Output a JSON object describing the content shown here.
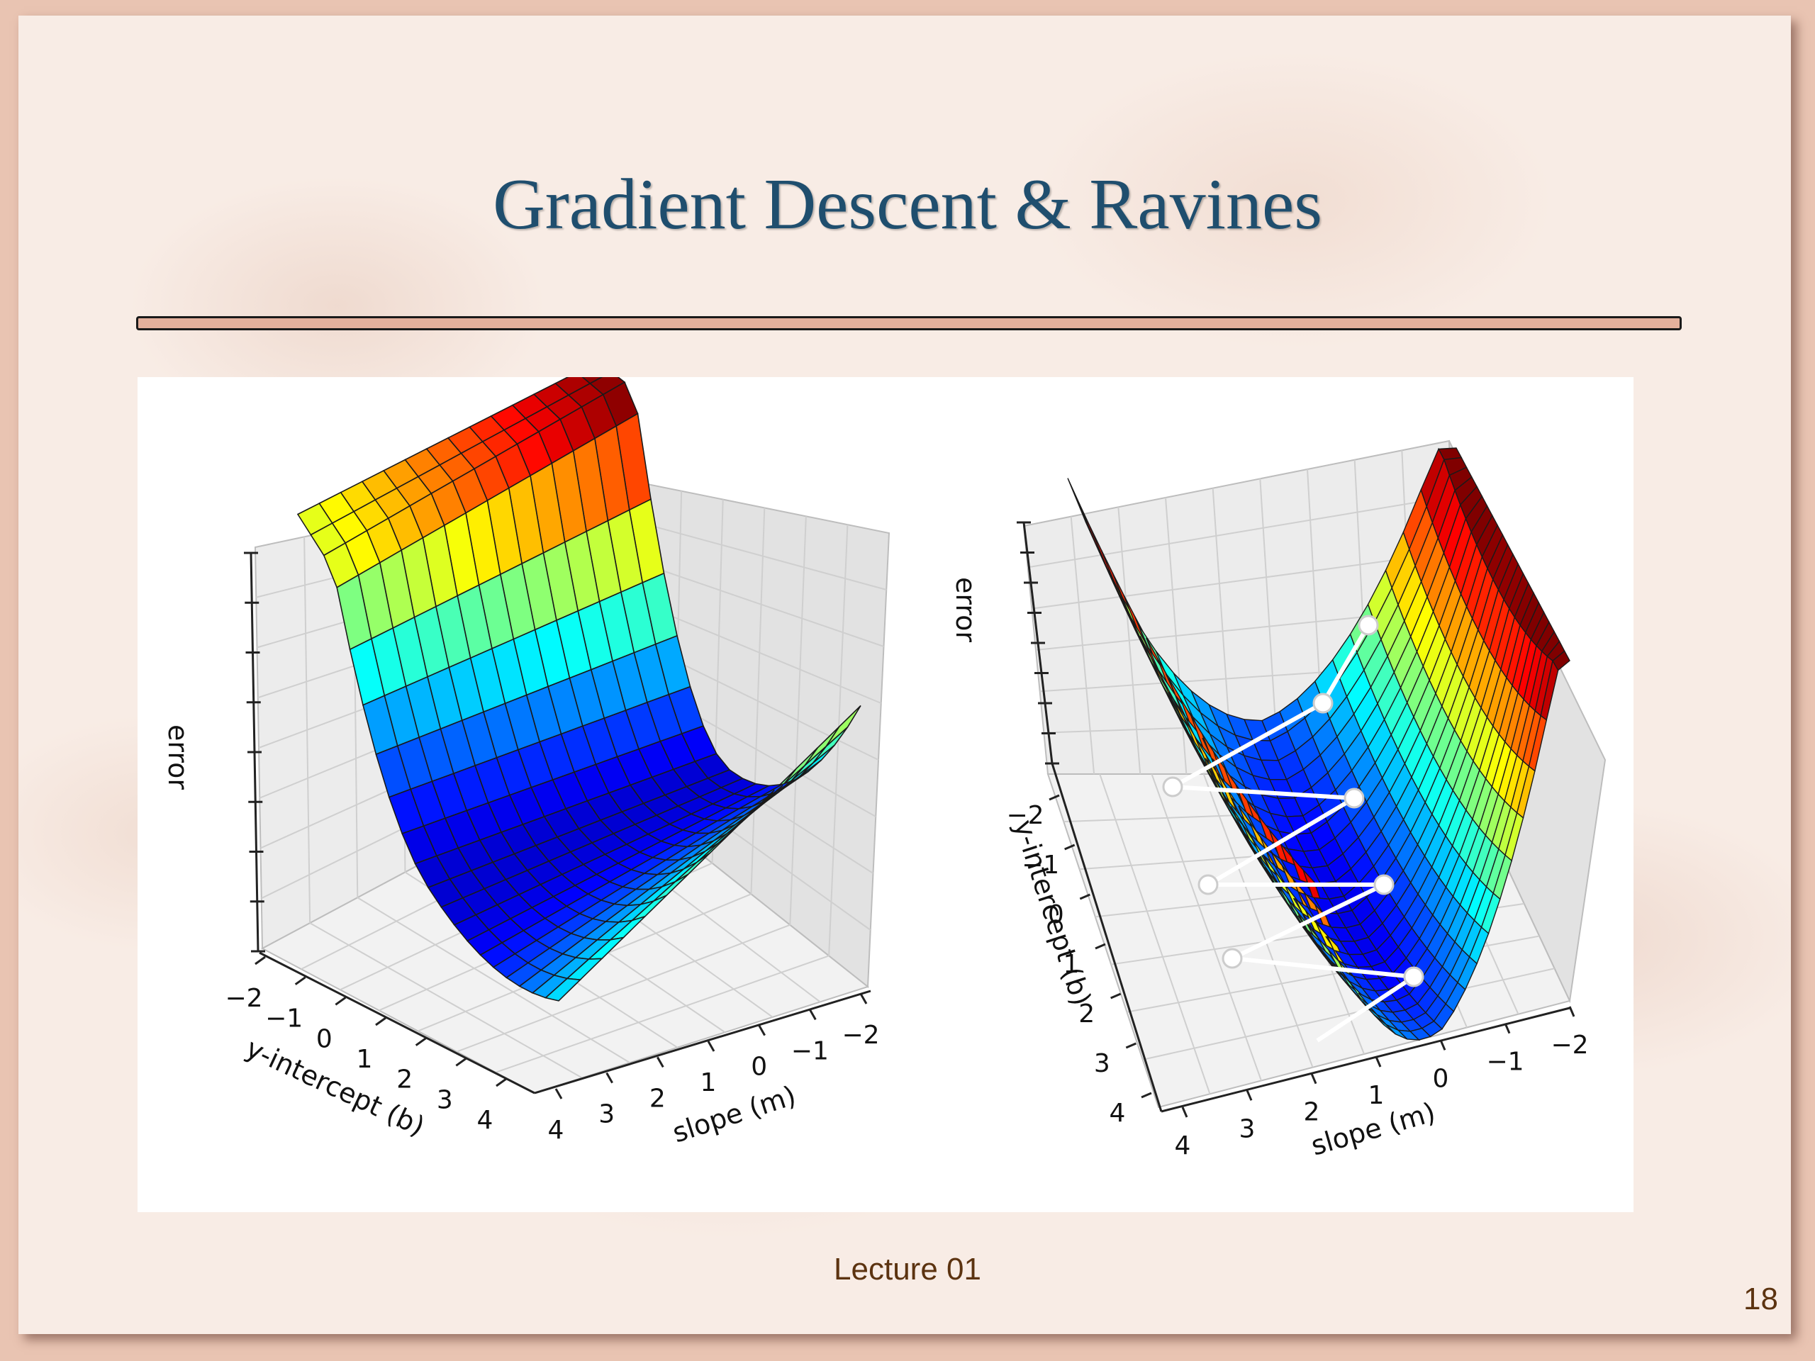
{
  "slide": {
    "title": "Gradient Descent & Ravines",
    "footer": "Lecture 01",
    "page_number": "18"
  },
  "left_plot": {
    "z_label": "error",
    "y_label": "y-intercept (b)",
    "x_label": "slope (m)",
    "b_ticks": [
      "−2",
      "−1",
      "0",
      "1",
      "2",
      "3",
      "4"
    ],
    "m_ticks": [
      "4",
      "3",
      "2",
      "1",
      "0",
      "−1",
      "−2"
    ]
  },
  "right_plot": {
    "z_label": "error",
    "y_label": "y-intercept (b)",
    "x_label": "slope (m)",
    "b_ticks": [
      "−2",
      "−1",
      "0",
      "1",
      "2",
      "3",
      "4"
    ],
    "m_ticks": [
      "4",
      "3",
      "2",
      "1",
      "0",
      "−1",
      "−2"
    ],
    "path_step_count": 9
  },
  "colors": {
    "title": "#1f4e6e",
    "footer": "#5c3310",
    "divider": "#e4b09c",
    "path": "#ffffff"
  }
}
